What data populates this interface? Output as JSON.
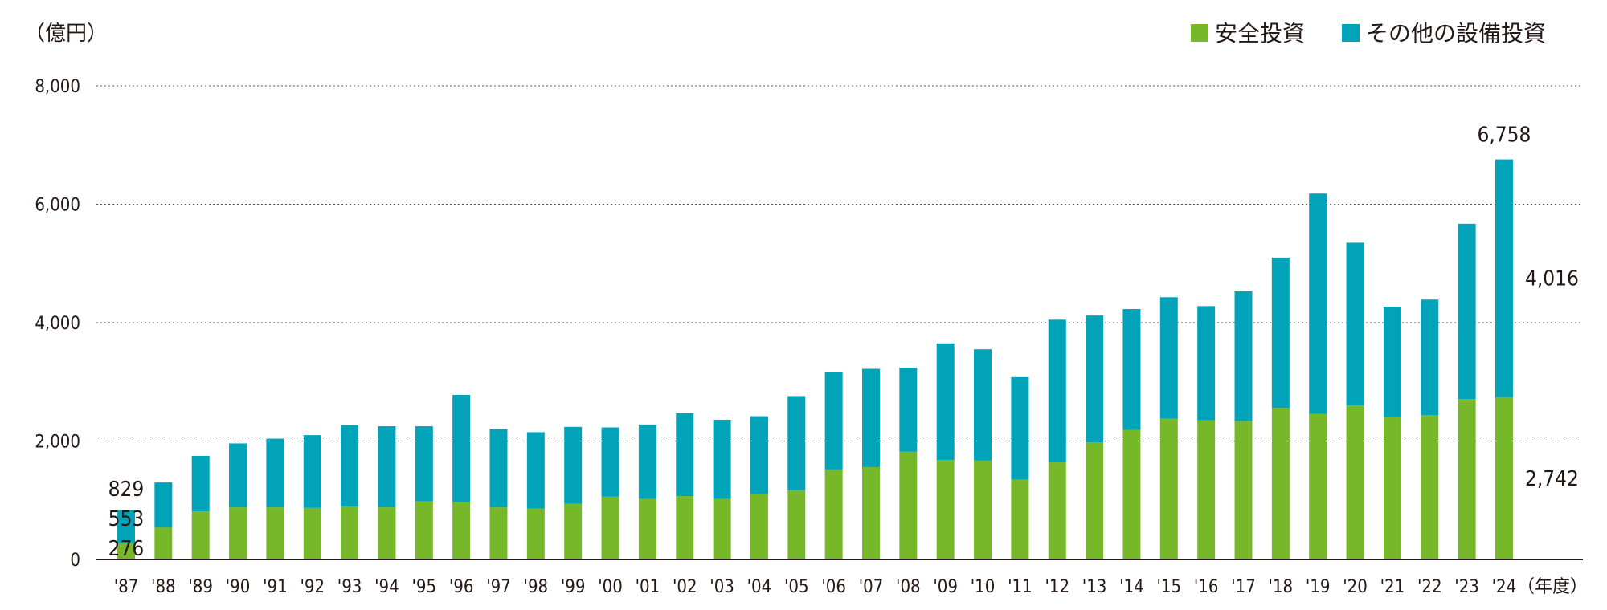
{
  "colors": {
    "safety": "#76b82a",
    "other": "#00a3b7"
  },
  "chart_data": {
    "type": "bar",
    "stacked": true,
    "unit_label": "（億円）",
    "x_unit_label": "（年度）",
    "categories": [
      "'87",
      "'88",
      "'89",
      "'90",
      "'91",
      "'92",
      "'93",
      "'94",
      "'95",
      "'96",
      "'97",
      "'98",
      "'99",
      "'00",
      "'01",
      "'02",
      "'03",
      "'04",
      "'05",
      "'06",
      "'07",
      "'08",
      "'09",
      "'10",
      "'11",
      "'12",
      "'13",
      "'14",
      "'15",
      "'16",
      "'17",
      "'18",
      "'19",
      "'20",
      "'21",
      "'22",
      "'23",
      "'24"
    ],
    "series": [
      {
        "name": "安全投資",
        "color": "#76b82a",
        "values": [
          276,
          550,
          810,
          880,
          880,
          870,
          890,
          880,
          980,
          970,
          880,
          860,
          940,
          1060,
          1020,
          1070,
          1020,
          1100,
          1170,
          1520,
          1560,
          1820,
          1680,
          1670,
          1350,
          1640,
          1980,
          2190,
          2380,
          2350,
          2340,
          2560,
          2460,
          2600,
          2400,
          2440,
          2710,
          2742
        ]
      },
      {
        "name": "その他の設備投資",
        "color": "#00a3b7",
        "values": [
          553,
          750,
          940,
          1080,
          1160,
          1230,
          1380,
          1370,
          1270,
          1810,
          1320,
          1290,
          1300,
          1170,
          1260,
          1400,
          1340,
          1320,
          1590,
          1640,
          1660,
          1420,
          1970,
          1880,
          1730,
          2410,
          2140,
          2040,
          2050,
          1930,
          2190,
          2540,
          3720,
          2750,
          1870,
          1950,
          2960,
          4016
        ]
      }
    ],
    "totals_labeled": {
      "first": "829",
      "last": "6,758"
    },
    "segment_labels": {
      "first_safety": "276",
      "first_other": "553",
      "last_safety": "2,742",
      "last_other": "4,016"
    },
    "y_ticks": [
      "0",
      "2,000",
      "4,000",
      "6,000",
      "8,000"
    ],
    "ylim": [
      0,
      8000
    ],
    "grid": true,
    "legend_position": "top-right"
  }
}
